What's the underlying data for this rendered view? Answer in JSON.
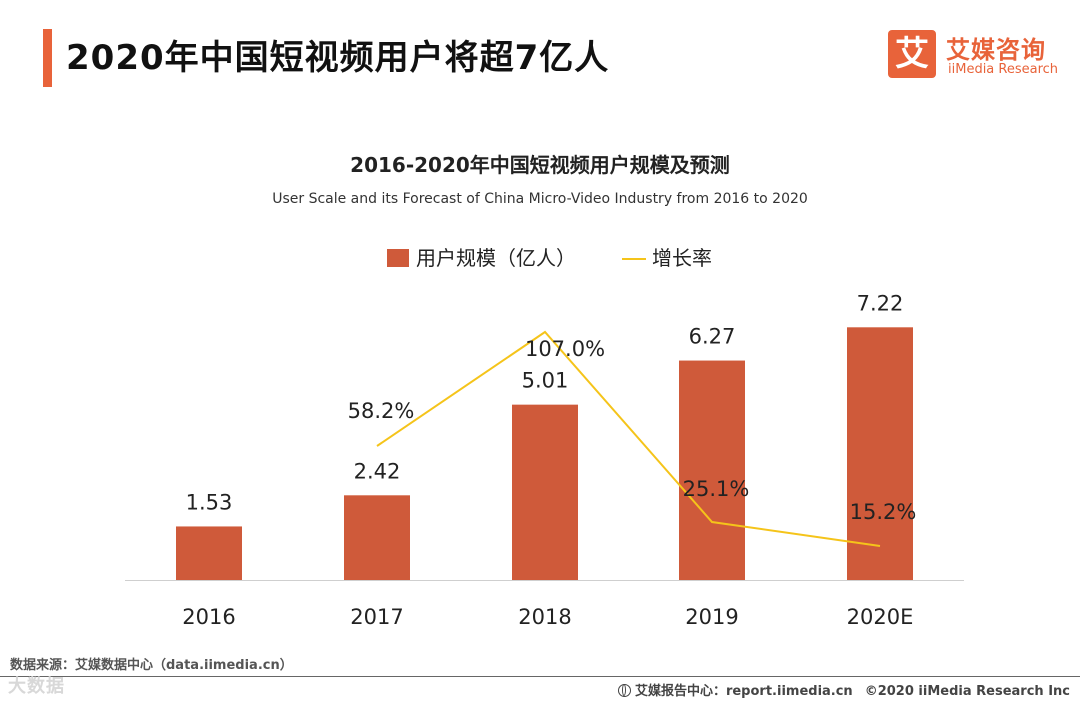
{
  "header": {
    "title": "2020年中国短视频用户将超7亿人",
    "logo_mark": "艾",
    "logo_cn": "艾媒咨询",
    "logo_en": "iiMedia Research"
  },
  "chart_data": {
    "type": "bar",
    "title": "2016-2020年中国短视频用户规模及预测",
    "subtitle": "User Scale and its Forecast of China Micro-Video Industry from 2016 to 2020",
    "categories": [
      "2016",
      "2017",
      "2018",
      "2019",
      "2020E"
    ],
    "legend_position": "top-center",
    "series": [
      {
        "name": "用户规模（亿人）",
        "type": "bar",
        "color": "#cf5a3a",
        "values": [
          1.53,
          2.42,
          5.01,
          6.27,
          7.22
        ],
        "labels": [
          "1.53",
          "2.42",
          "5.01",
          "6.27",
          "7.22"
        ]
      },
      {
        "name": "增长率",
        "type": "line",
        "color": "#f5c41a",
        "values": [
          null,
          58.2,
          107.0,
          25.1,
          15.2
        ],
        "labels": [
          "",
          "58.2%",
          "107.0%",
          "25.1%",
          "15.2%"
        ]
      }
    ],
    "bar_ylim": [
      0,
      8
    ],
    "line_ylim": [
      0,
      115
    ],
    "grid": false
  },
  "footer": {
    "source": "数据来源：艾媒数据中心（data.iimedia.cn）",
    "watermark": "大数据",
    "report": "艾媒报告中心：report.iimedia.cn",
    "copyright": "©2020  iiMedia Research  Inc"
  }
}
